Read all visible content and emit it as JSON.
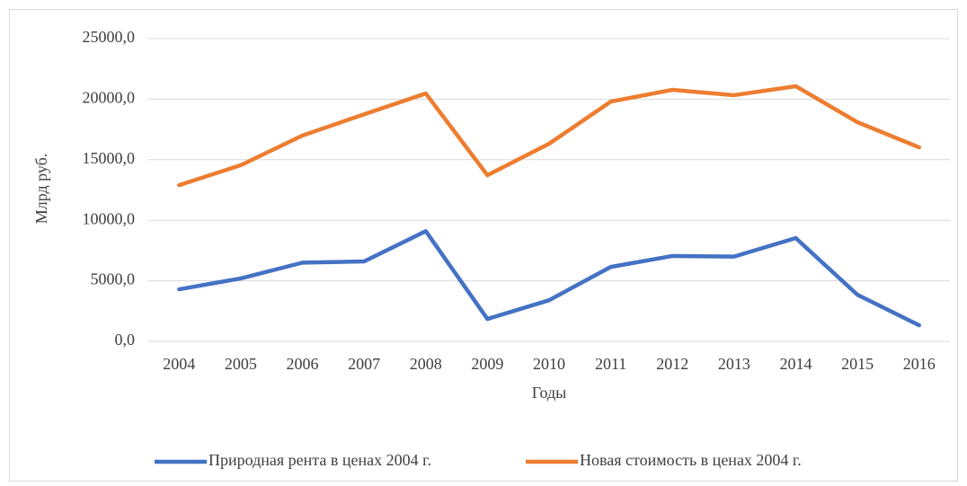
{
  "chart_data": {
    "type": "line",
    "ylabel": "Млрд руб.",
    "xlabel": "Годы",
    "categories": [
      "2004",
      "2005",
      "2006",
      "2007",
      "2008",
      "2009",
      "2010",
      "2011",
      "2012",
      "2013",
      "2014",
      "2015",
      "2016"
    ],
    "series": [
      {
        "name": "Природная рента в ценах 2004 г.",
        "color": "#4472c4",
        "values": [
          4300,
          5200,
          6500,
          6600,
          9100,
          1850,
          3400,
          6150,
          7050,
          7000,
          8530,
          3850,
          1330
        ]
      },
      {
        "name": "Новая стоимость в ценах 2004 г.",
        "color": "#ed7d31",
        "values": [
          12900,
          14550,
          17000,
          18750,
          20470,
          13720,
          16320,
          19800,
          20770,
          20330,
          21070,
          18100,
          16020
        ]
      }
    ],
    "ylim": [
      0,
      25000
    ],
    "yticks": [
      {
        "value": 0,
        "label": "0,0"
      },
      {
        "value": 5000,
        "label": "5000,0"
      },
      {
        "value": 10000,
        "label": "10000,0"
      },
      {
        "value": 15000,
        "label": "15000,0"
      },
      {
        "value": 20000,
        "label": "20000,0"
      },
      {
        "value": 25000,
        "label": "25000,0"
      }
    ],
    "grid": true,
    "legend": "bottom"
  }
}
